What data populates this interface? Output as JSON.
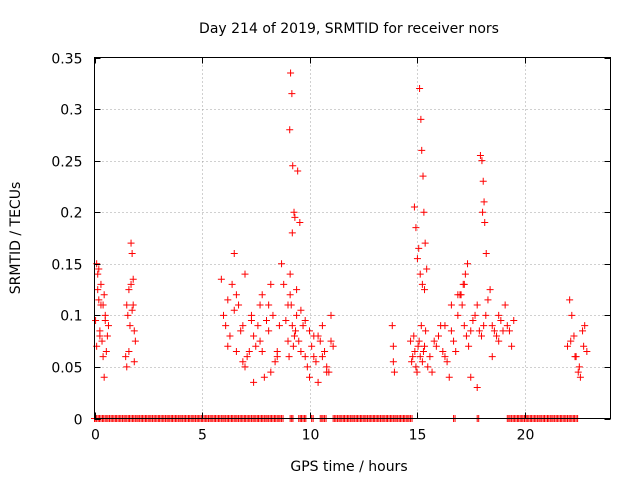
{
  "chart_data": {
    "type": "scatter",
    "title": "Day 214 of 2019, SRMTID for receiver nors",
    "xlabel": "GPS time / hours",
    "ylabel": "SRMTID / TECUs",
    "xlim": [
      0,
      24
    ],
    "ylim": [
      0,
      0.35
    ],
    "xticks": [
      0,
      5,
      10,
      15,
      20
    ],
    "xtick_labels": [
      "0",
      "5",
      "10",
      "15",
      "20"
    ],
    "yticks": [
      0,
      0.05,
      0.1,
      0.15,
      0.2,
      0.25,
      0.3,
      0.35
    ],
    "ytick_labels": [
      "0",
      "0.05",
      "0.1",
      "0.15",
      "0.2",
      "0.25",
      "0.3",
      "0.35"
    ],
    "grid": true,
    "marker": "+",
    "series": [
      {
        "name": "SRMTID",
        "color": "#ff0000",
        "x": [
          0.05,
          0.1,
          0.15,
          0.2,
          0.25,
          0.3,
          0.35,
          0.4,
          0.45,
          0.5,
          0.55,
          0.6,
          0.65,
          0.1,
          0.2,
          0.3,
          0.4,
          0.5,
          0.15,
          0.25,
          0.45,
          1.45,
          1.5,
          1.55,
          1.6,
          1.65,
          1.7,
          1.75,
          1.8,
          1.85,
          1.9,
          1.5,
          1.6,
          1.7,
          1.8,
          1.75,
          1.85,
          5.9,
          6.0,
          6.1,
          6.2,
          6.3,
          6.4,
          6.5,
          6.6,
          6.7,
          6.8,
          6.9,
          7.0,
          7.1,
          7.2,
          7.3,
          7.4,
          7.5,
          7.6,
          7.7,
          7.8,
          7.9,
          8.0,
          8.1,
          8.2,
          8.3,
          8.4,
          8.5,
          8.6,
          6.2,
          6.6,
          7.0,
          7.4,
          7.8,
          8.2,
          6.5,
          6.9,
          7.3,
          7.7,
          8.1,
          8.5,
          8.7,
          8.8,
          8.9,
          9.0,
          9.05,
          9.1,
          9.15,
          9.2,
          9.25,
          9.3,
          9.35,
          9.4,
          9.5,
          9.6,
          9.7,
          9.8,
          9.9,
          10.0,
          10.1,
          10.2,
          10.3,
          10.4,
          10.5,
          10.6,
          10.7,
          10.8,
          10.9,
          11.0,
          11.1,
          9.0,
          9.1,
          9.2,
          9.4,
          9.6,
          9.8,
          10.0,
          10.2,
          10.4,
          10.6,
          10.8,
          11.0,
          9.12,
          9.18,
          9.08,
          9.22,
          9.28,
          9.32,
          9.45,
          9.55,
          13.85,
          13.9,
          13.95,
          13.9,
          14.7,
          14.75,
          14.8,
          14.85,
          14.9,
          14.95,
          15.0,
          15.05,
          15.1,
          15.15,
          15.2,
          15.25,
          15.3,
          15.35,
          15.4,
          15.5,
          15.6,
          15.7,
          15.8,
          15.9,
          16.0,
          16.1,
          16.2,
          16.3,
          16.4,
          16.5,
          16.6,
          16.7,
          16.8,
          16.9,
          17.0,
          17.1,
          17.2,
          17.3,
          17.4,
          17.5,
          17.6,
          17.7,
          17.8,
          17.9,
          18.0,
          18.1,
          18.2,
          18.3,
          18.4,
          18.5,
          18.6,
          18.7,
          18.8,
          18.9,
          19.0,
          19.1,
          19.2,
          19.3,
          19.4,
          19.5,
          15.12,
          15.18,
          15.22,
          15.28,
          15.32,
          15.38,
          15.08,
          15.02,
          14.95,
          14.88,
          15.15,
          15.25,
          15.35,
          15.45,
          17.05,
          17.15,
          17.25,
          17.35,
          17.95,
          18.02,
          18.08,
          18.12,
          18.05,
          18.15,
          18.22,
          17.5,
          17.8,
          18.5,
          18.8,
          16.3,
          16.6,
          16.9,
          17.2,
          22.0,
          22.1,
          22.2,
          22.3,
          22.4,
          22.5,
          22.6,
          22.7,
          22.8,
          22.9,
          22.15,
          22.35,
          22.55,
          22.75
        ],
        "y": [
          0.095,
          0.15,
          0.14,
          0.115,
          0.085,
          0.11,
          0.075,
          0.06,
          0.04,
          0.1,
          0.065,
          0.08,
          0.09,
          0.07,
          0.145,
          0.13,
          0.11,
          0.095,
          0.125,
          0.08,
          0.12,
          0.06,
          0.11,
          0.1,
          0.125,
          0.09,
          0.17,
          0.16,
          0.11,
          0.055,
          0.075,
          0.05,
          0.065,
          0.13,
          0.135,
          0.105,
          0.085,
          0.135,
          0.1,
          0.09,
          0.115,
          0.08,
          0.13,
          0.16,
          0.12,
          0.11,
          0.085,
          0.09,
          0.05,
          0.06,
          0.065,
          0.1,
          0.08,
          0.07,
          0.09,
          0.11,
          0.065,
          0.04,
          0.095,
          0.085,
          0.13,
          0.1,
          0.055,
          0.06,
          0.09,
          0.07,
          0.065,
          0.14,
          0.035,
          0.12,
          0.045,
          0.105,
          0.055,
          0.095,
          0.075,
          0.11,
          0.065,
          0.15,
          0.13,
          0.095,
          0.075,
          0.06,
          0.12,
          0.11,
          0.09,
          0.07,
          0.08,
          0.085,
          0.1,
          0.075,
          0.065,
          0.09,
          0.06,
          0.05,
          0.085,
          0.07,
          0.06,
          0.055,
          0.08,
          0.075,
          0.09,
          0.065,
          0.05,
          0.045,
          0.1,
          0.07,
          0.11,
          0.14,
          0.18,
          0.125,
          0.105,
          0.095,
          0.04,
          0.08,
          0.035,
          0.06,
          0.045,
          0.075,
          0.335,
          0.315,
          0.28,
          0.245,
          0.2,
          0.195,
          0.24,
          0.19,
          0.09,
          0.055,
          0.045,
          0.07,
          0.075,
          0.055,
          0.06,
          0.08,
          0.065,
          0.05,
          0.045,
          0.07,
          0.075,
          0.06,
          0.09,
          0.055,
          0.065,
          0.07,
          0.085,
          0.05,
          0.06,
          0.045,
          0.075,
          0.07,
          0.08,
          0.09,
          0.065,
          0.06,
          0.055,
          0.04,
          0.085,
          0.075,
          0.065,
          0.1,
          0.12,
          0.11,
          0.09,
          0.08,
          0.07,
          0.085,
          0.095,
          0.1,
          0.11,
          0.085,
          0.08,
          0.09,
          0.1,
          0.115,
          0.125,
          0.09,
          0.085,
          0.08,
          0.1,
          0.095,
          0.085,
          0.11,
          0.09,
          0.085,
          0.07,
          0.095,
          0.32,
          0.29,
          0.26,
          0.235,
          0.2,
          0.17,
          0.165,
          0.155,
          0.185,
          0.205,
          0.14,
          0.13,
          0.125,
          0.145,
          0.12,
          0.13,
          0.14,
          0.15,
          0.255,
          0.25,
          0.23,
          0.21,
          0.2,
          0.19,
          0.16,
          0.04,
          0.03,
          0.06,
          0.075,
          0.09,
          0.11,
          0.12,
          0.13,
          0.07,
          0.115,
          0.1,
          0.08,
          0.06,
          0.045,
          0.04,
          0.085,
          0.09,
          0.065,
          0.075,
          0.06,
          0.05,
          0.07
        ]
      }
    ],
    "zero_band_x": [
      0.0,
      0.03,
      0.1,
      0.17,
      0.23,
      0.3,
      0.37,
      0.43,
      0.5,
      0.57,
      0.63,
      0.7,
      0.77,
      0.83,
      0.9,
      0.97,
      1.03,
      1.1,
      1.17,
      1.23,
      1.3,
      1.37,
      1.43,
      1.5,
      1.57,
      1.63,
      1.7,
      1.77,
      1.83,
      1.9,
      1.97,
      2.03,
      2.1,
      2.17,
      2.23,
      2.3,
      2.37,
      2.43,
      2.5,
      2.57,
      2.63,
      2.7,
      2.77,
      2.83,
      2.9,
      2.97,
      3.03,
      3.1,
      3.17,
      3.23,
      3.3,
      3.37,
      3.43,
      3.5,
      3.57,
      3.63,
      3.7,
      3.77,
      3.83,
      3.9,
      3.97,
      4.03,
      4.1,
      4.17,
      4.23,
      4.3,
      4.37,
      4.43,
      4.5,
      4.57,
      4.63,
      4.7,
      4.77,
      4.83,
      4.9,
      4.97,
      5.03,
      5.1,
      5.17,
      5.23,
      5.3,
      5.37,
      5.43,
      5.5,
      5.57,
      5.63,
      5.7,
      5.77,
      5.83,
      5.9,
      5.97,
      6.03,
      6.1,
      6.17,
      6.23,
      6.3,
      6.37,
      6.43,
      6.5,
      6.57,
      6.63,
      6.7,
      6.77,
      6.83,
      6.9,
      6.97,
      7.03,
      7.1,
      7.17,
      7.23,
      7.3,
      7.37,
      7.43,
      7.5,
      7.57,
      7.63,
      7.7,
      7.77,
      7.83,
      7.9,
      7.97,
      8.03,
      8.1,
      8.17,
      8.23,
      8.3,
      8.37,
      8.43,
      8.5,
      8.57,
      8.63,
      8.7,
      8.77,
      9.1,
      9.17,
      9.23,
      9.5,
      9.57,
      9.63,
      9.7,
      9.77,
      9.83,
      10.1,
      10.17,
      10.5,
      10.57,
      10.63,
      10.7,
      10.77,
      11.1,
      11.17,
      11.23,
      11.3,
      11.37,
      11.43,
      11.5,
      11.57,
      11.63,
      11.7,
      11.77,
      11.83,
      11.9,
      11.97,
      12.03,
      12.1,
      12.17,
      12.23,
      12.3,
      12.37,
      12.43,
      12.5,
      12.57,
      12.63,
      12.7,
      12.77,
      12.83,
      12.9,
      12.97,
      13.03,
      13.1,
      13.17,
      13.23,
      13.3,
      13.37,
      13.43,
      13.5,
      13.57,
      13.63,
      13.7,
      13.77,
      13.83,
      13.9,
      13.97,
      14.03,
      14.1,
      14.17,
      14.23,
      14.3,
      14.37,
      14.43,
      14.5,
      14.57,
      14.63,
      14.7,
      14.77,
      16.7,
      16.77,
      17.8,
      17.87,
      19.2,
      19.27,
      19.33,
      19.4,
      19.47,
      19.53,
      19.6,
      19.67,
      19.73,
      19.8,
      19.87,
      19.93,
      20.0,
      20.07,
      20.13,
      20.2,
      20.27,
      20.33,
      20.4,
      20.47,
      20.53,
      20.6,
      20.67,
      20.73,
      20.8,
      20.87,
      20.93,
      21.0,
      21.07,
      21.13,
      21.2,
      21.27,
      21.33,
      21.4,
      21.47,
      21.53,
      21.6,
      21.67,
      21.73,
      21.8,
      21.87,
      21.93,
      22.0,
      22.07,
      22.13,
      22.2,
      22.27,
      22.33,
      22.4,
      22.47
    ]
  }
}
